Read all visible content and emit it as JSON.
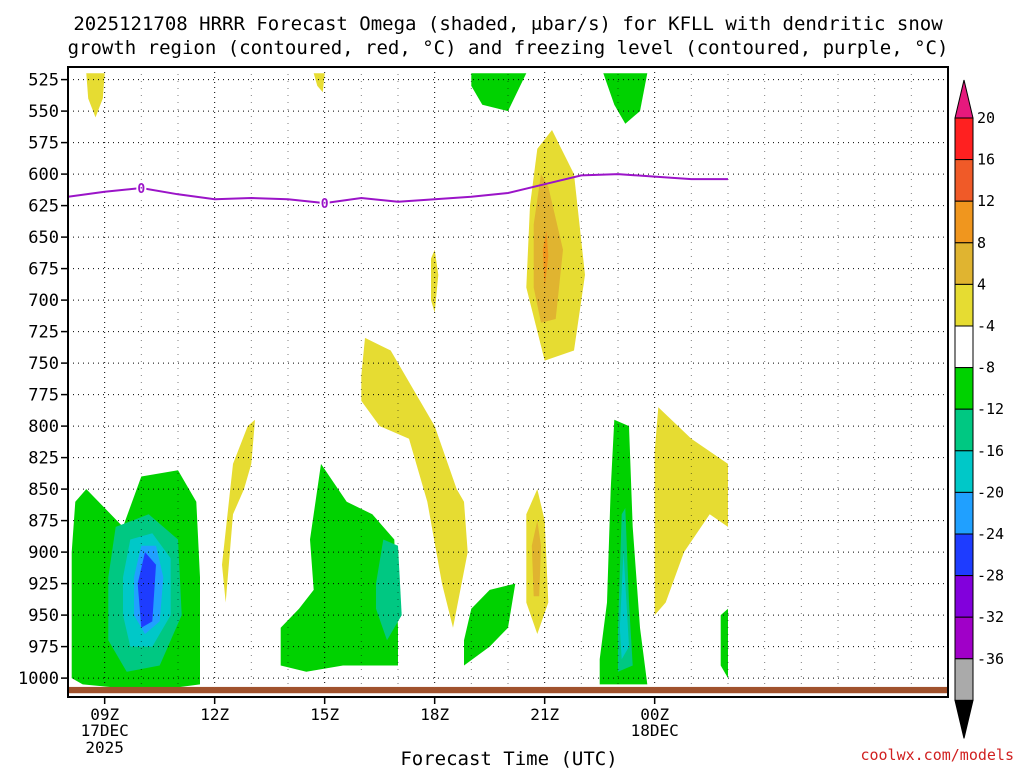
{
  "chart_data": {
    "type": "contour",
    "title_line1": "2025121708 HRRR Forecast Omega (shaded, μbar/s) for KFLL with dendritic snow",
    "title_line2": "growth region (contoured, red, °C) and freezing level (contoured, purple, °C)",
    "xlabel": "Forecast Time (UTC)",
    "credit": "coolwx.com/models",
    "x_range_hours": [
      0,
      24
    ],
    "x_ticks": [
      {
        "hour": 1,
        "label": "09Z",
        "sub1": "17DEC",
        "sub2": "2025"
      },
      {
        "hour": 4,
        "label": "12Z",
        "sub1": "",
        "sub2": ""
      },
      {
        "hour": 7,
        "label": "15Z",
        "sub1": "",
        "sub2": ""
      },
      {
        "hour": 10,
        "label": "18Z",
        "sub1": "",
        "sub2": ""
      },
      {
        "hour": 13,
        "label": "21Z",
        "sub1": "",
        "sub2": ""
      },
      {
        "hour": 16,
        "label": "00Z",
        "sub1": "18DEC",
        "sub2": ""
      }
    ],
    "y_ticks": [
      "525",
      "550",
      "575",
      "600",
      "625",
      "650",
      "675",
      "700",
      "725",
      "750",
      "775",
      "800",
      "825",
      "850",
      "875",
      "900",
      "925",
      "950",
      "975",
      "1000"
    ],
    "y_range_hpa": [
      515,
      1015
    ],
    "freezing_level": {
      "label": "0",
      "label_points": [
        {
          "h": 2,
          "p": 611
        },
        {
          "h": 7,
          "p": 623
        }
      ],
      "points": [
        {
          "h": 0,
          "p": 618
        },
        {
          "h": 1,
          "p": 614
        },
        {
          "h": 2,
          "p": 611
        },
        {
          "h": 3,
          "p": 616
        },
        {
          "h": 4,
          "p": 620
        },
        {
          "h": 5,
          "p": 619
        },
        {
          "h": 6,
          "p": 620
        },
        {
          "h": 7,
          "p": 623
        },
        {
          "h": 8,
          "p": 619
        },
        {
          "h": 9,
          "p": 622
        },
        {
          "h": 10,
          "p": 620
        },
        {
          "h": 11,
          "p": 618
        },
        {
          "h": 12,
          "p": 615
        },
        {
          "h": 13,
          "p": 608
        },
        {
          "h": 14,
          "p": 601
        },
        {
          "h": 15,
          "p": 600
        },
        {
          "h": 16,
          "p": 602
        },
        {
          "h": 17,
          "p": 604
        },
        {
          "h": 18,
          "p": 604
        }
      ]
    },
    "colorbar": {
      "labels": [
        "20",
        "16",
        "12",
        "8",
        "4",
        "-4",
        "-8",
        "-12",
        "-16",
        "-20",
        "-24",
        "-28",
        "-32",
        "-36"
      ],
      "colors": [
        "#ff2020",
        "#f05a28",
        "#f0961e",
        "#e0b430",
        "#e6dc32",
        "#ffffff",
        "#00d200",
        "#00c882",
        "#00c8c8",
        "#20a0ff",
        "#1e3cff",
        "#8200dc",
        "#a000c8",
        "#aaaaaa"
      ],
      "top_color": "#e6197d",
      "bottom_color": "#000000"
    },
    "omega_regions": [
      {
        "level": 4,
        "points": [
          [
            0.5,
            520
          ],
          [
            1.0,
            520
          ],
          [
            0.95,
            540
          ],
          [
            0.75,
            555
          ],
          [
            0.55,
            540
          ]
        ]
      },
      {
        "level": 4,
        "points": [
          [
            6.7,
            520
          ],
          [
            7.0,
            520
          ],
          [
            6.95,
            535
          ],
          [
            6.8,
            530
          ]
        ]
      },
      {
        "level": 4,
        "points": [
          [
            12.6,
            625
          ],
          [
            12.8,
            580
          ],
          [
            13.2,
            565
          ],
          [
            13.8,
            600
          ],
          [
            14.1,
            680
          ],
          [
            13.8,
            740
          ],
          [
            13.0,
            748
          ],
          [
            12.5,
            690
          ]
        ]
      },
      {
        "level": 8,
        "points": [
          [
            12.7,
            640
          ],
          [
            12.9,
            600
          ],
          [
            13.1,
            610
          ],
          [
            13.5,
            660
          ],
          [
            13.3,
            715
          ],
          [
            12.9,
            718
          ],
          [
            12.7,
            690
          ]
        ]
      },
      {
        "level": 12,
        "points": [
          [
            12.95,
            660
          ],
          [
            13.05,
            645
          ],
          [
            13.1,
            665
          ],
          [
            13.0,
            690
          ]
        ]
      },
      {
        "level": 4,
        "points": [
          [
            9.9,
            667
          ],
          [
            10.0,
            660
          ],
          [
            10.1,
            680
          ],
          [
            10.0,
            710
          ],
          [
            9.9,
            700
          ]
        ]
      },
      {
        "level": 4,
        "points": [
          [
            8.0,
            760
          ],
          [
            8.1,
            730
          ],
          [
            8.8,
            740
          ],
          [
            9.6,
            780
          ],
          [
            10.0,
            800
          ],
          [
            10.6,
            850
          ],
          [
            10.8,
            860
          ],
          [
            10.9,
            900
          ],
          [
            10.5,
            960
          ],
          [
            10.2,
            925
          ],
          [
            9.8,
            860
          ],
          [
            9.3,
            810
          ],
          [
            8.5,
            800
          ],
          [
            8.0,
            780
          ]
        ]
      },
      {
        "level": 4,
        "points": [
          [
            4.2,
            910
          ],
          [
            4.5,
            830
          ],
          [
            4.9,
            800
          ],
          [
            5.1,
            795
          ],
          [
            5.0,
            830
          ],
          [
            4.8,
            850
          ],
          [
            4.5,
            870
          ],
          [
            4.3,
            940
          ]
        ]
      },
      {
        "level": 4,
        "points": [
          [
            16.0,
            820
          ],
          [
            16.1,
            785
          ],
          [
            17.0,
            810
          ],
          [
            18.0,
            830
          ],
          [
            18.0,
            880
          ],
          [
            17.5,
            870
          ],
          [
            16.8,
            900
          ],
          [
            16.3,
            940
          ],
          [
            16.0,
            950
          ]
        ]
      },
      {
        "level": 4,
        "points": [
          [
            12.5,
            870
          ],
          [
            12.8,
            850
          ],
          [
            13.0,
            875
          ],
          [
            13.1,
            940
          ],
          [
            12.8,
            965
          ],
          [
            12.5,
            940
          ]
        ]
      },
      {
        "level": 8,
        "points": [
          [
            12.65,
            895
          ],
          [
            12.8,
            875
          ],
          [
            12.9,
            895
          ],
          [
            12.85,
            935
          ],
          [
            12.7,
            935
          ]
        ]
      },
      {
        "level": -4,
        "points": [
          [
            0.1,
            900
          ],
          [
            0.2,
            860
          ],
          [
            0.5,
            850
          ],
          [
            1.0,
            865
          ],
          [
            1.5,
            880
          ],
          [
            2.0,
            840
          ],
          [
            3.0,
            835
          ],
          [
            3.5,
            860
          ],
          [
            3.6,
            920
          ],
          [
            3.6,
            1005
          ],
          [
            2.8,
            1008
          ],
          [
            1.5,
            1008
          ],
          [
            0.4,
            1005
          ],
          [
            0.1,
            1000
          ]
        ]
      },
      {
        "level": -8,
        "points": [
          [
            1.1,
            920
          ],
          [
            1.3,
            880
          ],
          [
            2.2,
            870
          ],
          [
            3.0,
            890
          ],
          [
            3.1,
            950
          ],
          [
            2.5,
            990
          ],
          [
            1.6,
            995
          ],
          [
            1.1,
            970
          ]
        ]
      },
      {
        "level": -12,
        "points": [
          [
            1.5,
            920
          ],
          [
            1.7,
            890
          ],
          [
            2.3,
            885
          ],
          [
            2.8,
            905
          ],
          [
            2.8,
            950
          ],
          [
            2.3,
            975
          ],
          [
            1.7,
            975
          ],
          [
            1.5,
            950
          ]
        ]
      },
      {
        "level": -16,
        "points": [
          [
            1.8,
            920
          ],
          [
            2.0,
            895
          ],
          [
            2.4,
            895
          ],
          [
            2.6,
            920
          ],
          [
            2.5,
            955
          ],
          [
            2.1,
            965
          ],
          [
            1.8,
            950
          ]
        ]
      },
      {
        "level": -20,
        "points": [
          [
            1.9,
            925
          ],
          [
            2.1,
            900
          ],
          [
            2.4,
            910
          ],
          [
            2.3,
            955
          ],
          [
            2.0,
            960
          ]
        ]
      },
      {
        "level": -4,
        "points": [
          [
            5.8,
            960
          ],
          [
            6.3,
            945
          ],
          [
            6.7,
            930
          ],
          [
            6.6,
            890
          ],
          [
            6.9,
            830
          ],
          [
            7.6,
            860
          ],
          [
            8.3,
            870
          ],
          [
            8.9,
            890
          ],
          [
            9.0,
            960
          ],
          [
            9.0,
            990
          ],
          [
            7.5,
            990
          ],
          [
            6.5,
            995
          ],
          [
            5.8,
            990
          ]
        ]
      },
      {
        "level": -8,
        "points": [
          [
            8.4,
            925
          ],
          [
            8.6,
            890
          ],
          [
            9.0,
            895
          ],
          [
            9.1,
            950
          ],
          [
            8.7,
            970
          ],
          [
            8.4,
            945
          ]
        ]
      },
      {
        "level": -4,
        "points": [
          [
            10.8,
            970
          ],
          [
            11.0,
            945
          ],
          [
            11.5,
            930
          ],
          [
            12.2,
            925
          ],
          [
            12.0,
            960
          ],
          [
            11.5,
            975
          ],
          [
            10.8,
            990
          ]
        ]
      },
      {
        "level": -4,
        "points": [
          [
            14.5,
            985
          ],
          [
            14.7,
            940
          ],
          [
            14.8,
            850
          ],
          [
            14.9,
            795
          ],
          [
            15.3,
            800
          ],
          [
            15.4,
            880
          ],
          [
            15.6,
            960
          ],
          [
            15.8,
            1005
          ],
          [
            14.5,
            1005
          ]
        ]
      },
      {
        "level": -8,
        "points": [
          [
            15.0,
            960
          ],
          [
            15.1,
            870
          ],
          [
            15.2,
            865
          ],
          [
            15.3,
            940
          ],
          [
            15.4,
            990
          ],
          [
            15.0,
            995
          ]
        ]
      },
      {
        "level": -12,
        "points": [
          [
            15.05,
            960
          ],
          [
            15.15,
            900
          ],
          [
            15.3,
            975
          ],
          [
            15.1,
            985
          ]
        ]
      },
      {
        "level": -4,
        "points": [
          [
            11.0,
            520
          ],
          [
            12.5,
            520
          ],
          [
            12.0,
            550
          ],
          [
            11.3,
            545
          ],
          [
            11.0,
            530
          ]
        ]
      },
      {
        "level": -4,
        "points": [
          [
            14.6,
            520
          ],
          [
            15.8,
            520
          ],
          [
            15.6,
            550
          ],
          [
            15.2,
            560
          ],
          [
            14.9,
            545
          ]
        ]
      },
      {
        "level": -4,
        "points": [
          [
            17.8,
            950
          ],
          [
            18.0,
            945
          ],
          [
            18.0,
            1000
          ],
          [
            17.8,
            990
          ]
        ]
      }
    ]
  }
}
